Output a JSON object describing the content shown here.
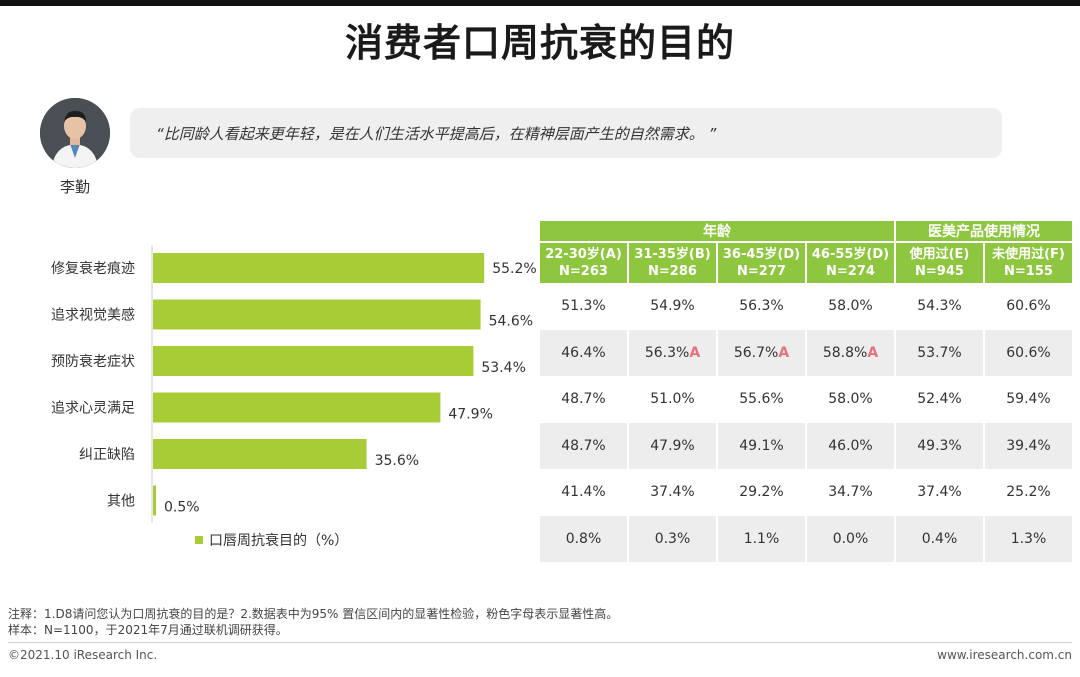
{
  "title": "消费者口周抗衰的目的",
  "person": {
    "name": "李勤"
  },
  "quote": "“比同龄人看起来更年轻，是在人们生活水平提高后，在精神层面产生的自然需求。 ”",
  "chart_data": {
    "type": "bar",
    "orientation": "horizontal",
    "categories": [
      "修复衰老痕迹",
      "追求视觉美感",
      "预防衰老症状",
      "追求心灵满足",
      "纠正缺陷",
      "其他"
    ],
    "values": [
      55.2,
      54.6,
      53.4,
      47.9,
      35.6,
      0.5
    ],
    "value_labels": [
      "55.2%",
      "54.6%",
      "53.4%",
      "47.9%",
      "35.6%",
      "0.5%"
    ],
    "series_name": "口唇周抗衰目的（%）",
    "xlim": [
      0,
      100
    ],
    "color": "#a7cc35"
  },
  "table": {
    "groups": [
      {
        "label": "年龄",
        "span": 4
      },
      {
        "label": "医美产品使用情况",
        "span": 2
      }
    ],
    "columns": [
      {
        "label": "22-30岁(A)",
        "n": "N=263"
      },
      {
        "label": "31-35岁(B)",
        "n": "N=286"
      },
      {
        "label": "36-45岁(D)",
        "n": "N=277"
      },
      {
        "label": "46-55岁(D)",
        "n": "N=274"
      },
      {
        "label": "使用过(E)",
        "n": "N=945"
      },
      {
        "label": "未使用过(F)",
        "n": "N=155"
      }
    ],
    "rows": [
      [
        {
          "v": "51.3%"
        },
        {
          "v": "54.9%"
        },
        {
          "v": "56.3%"
        },
        {
          "v": "58.0%"
        },
        {
          "v": "54.3%"
        },
        {
          "v": "60.6%"
        }
      ],
      [
        {
          "v": "46.4%"
        },
        {
          "v": "56.3%",
          "sig": "A"
        },
        {
          "v": "56.7%",
          "sig": "A"
        },
        {
          "v": "58.8%",
          "sig": "A"
        },
        {
          "v": "53.7%"
        },
        {
          "v": "60.6%"
        }
      ],
      [
        {
          "v": "48.7%"
        },
        {
          "v": "51.0%"
        },
        {
          "v": "55.6%"
        },
        {
          "v": "58.0%"
        },
        {
          "v": "52.4%"
        },
        {
          "v": "59.4%"
        }
      ],
      [
        {
          "v": "48.7%"
        },
        {
          "v": "47.9%"
        },
        {
          "v": "49.1%"
        },
        {
          "v": "46.0%"
        },
        {
          "v": "49.3%"
        },
        {
          "v": "39.4%"
        }
      ],
      [
        {
          "v": "41.4%"
        },
        {
          "v": "37.4%"
        },
        {
          "v": "29.2%"
        },
        {
          "v": "34.7%"
        },
        {
          "v": "37.4%"
        },
        {
          "v": "25.2%"
        }
      ],
      [
        {
          "v": "0.8%"
        },
        {
          "v": "0.3%"
        },
        {
          "v": "1.1%"
        },
        {
          "v": "0.0%"
        },
        {
          "v": "0.4%"
        },
        {
          "v": "1.3%"
        }
      ]
    ]
  },
  "footnote": {
    "note": "注释：1.D8请问您认为口周抗衰的目的是？2.数据表中为95% 置信区间内的显著性检验，粉色字母表示显著性高。",
    "sample": "样本：N=1100，于2021年7月通过联机调研获得。"
  },
  "footer": {
    "copyright": "©2021.10 iResearch Inc.",
    "site": "www.iresearch.com.cn"
  }
}
